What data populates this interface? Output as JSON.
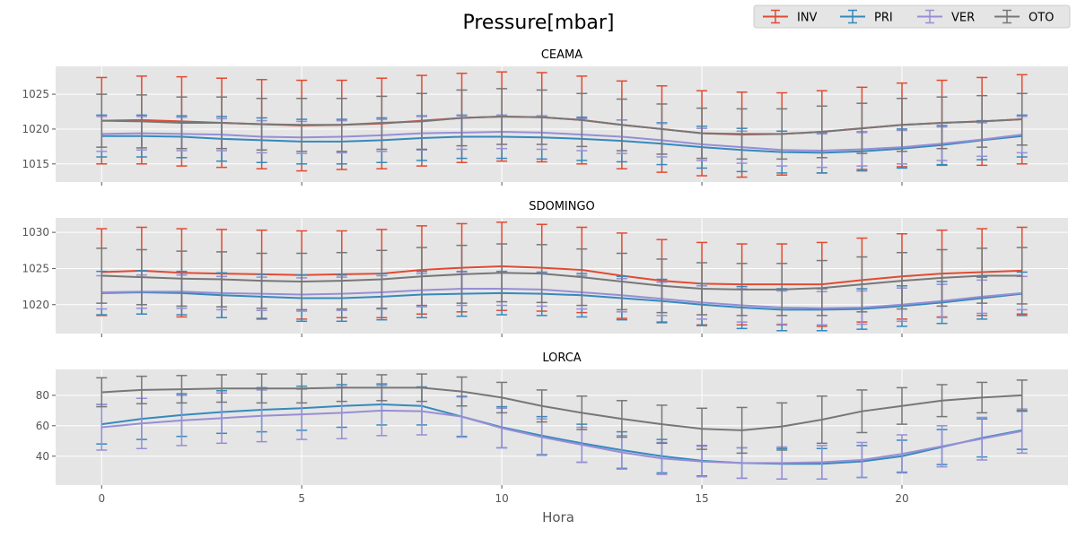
{
  "chart_data": {
    "type": "line",
    "title": "Pressure[mbar]",
    "xlabel": "Hora",
    "x": [
      0,
      1,
      2,
      3,
      4,
      5,
      6,
      7,
      8,
      9,
      10,
      11,
      12,
      13,
      14,
      15,
      16,
      17,
      18,
      19,
      20,
      21,
      22,
      23
    ],
    "xticks": [
      0,
      5,
      10,
      15,
      20
    ],
    "xlim": [
      -1.15,
      24.15
    ],
    "legend": {
      "position": "top-right",
      "entries": [
        "INV",
        "PRI",
        "VER",
        "OTO"
      ]
    },
    "colors": {
      "INV": "#E24A33",
      "PRI": "#348ABD",
      "VER": "#988ED5",
      "OTO": "#777777"
    },
    "background": "#E5E5E5",
    "grid": true,
    "panels": [
      {
        "title": "CEAMA",
        "ylim": [
          1012.4,
          1029.0
        ],
        "yticks": [
          1015,
          1020,
          1025
        ],
        "series": [
          {
            "name": "INV",
            "values": [
              1021.2,
              1021.3,
              1021.1,
              1020.9,
              1020.7,
              1020.5,
              1020.6,
              1020.8,
              1021.2,
              1021.6,
              1021.8,
              1021.7,
              1021.3,
              1020.6,
              1020.0,
              1019.4,
              1019.2,
              1019.3,
              1019.6,
              1020.1,
              1020.6,
              1020.9,
              1021.1,
              1021.4
            ],
            "err": [
              6.2,
              6.3,
              6.4,
              6.4,
              6.4,
              6.5,
              6.4,
              6.5,
              6.5,
              6.4,
              6.4,
              6.4,
              6.3,
              6.3,
              6.2,
              6.1,
              6.1,
              5.9,
              5.9,
              5.9,
              6.0,
              6.1,
              6.3,
              6.4
            ]
          },
          {
            "name": "PRI",
            "values": [
              1019.0,
              1019.0,
              1018.9,
              1018.6,
              1018.4,
              1018.2,
              1018.2,
              1018.4,
              1018.7,
              1018.9,
              1018.9,
              1018.8,
              1018.6,
              1018.3,
              1017.9,
              1017.4,
              1017.0,
              1016.7,
              1016.6,
              1016.8,
              1017.2,
              1017.7,
              1018.4,
              1019.0
            ],
            "err": [
              3.0,
              3.0,
              3.0,
              3.2,
              3.2,
              3.2,
              3.2,
              3.2,
              3.2,
              3.1,
              3.1,
              3.1,
              3.1,
              3.0,
              3.0,
              3.0,
              3.1,
              3.0,
              2.9,
              2.8,
              2.8,
              2.8,
              2.8,
              3.0
            ]
          },
          {
            "name": "VER",
            "values": [
              1019.3,
              1019.4,
              1019.3,
              1019.2,
              1018.9,
              1018.8,
              1018.9,
              1019.1,
              1019.4,
              1019.5,
              1019.6,
              1019.5,
              1019.2,
              1018.9,
              1018.4,
              1017.8,
              1017.4,
              1017.0,
              1016.9,
              1017.1,
              1017.4,
              1017.9,
              1018.5,
              1019.2
            ],
            "err": [
              2.5,
              2.4,
              2.4,
              2.3,
              2.3,
              2.3,
              2.3,
              2.3,
              2.4,
              2.4,
              2.4,
              2.4,
              2.3,
              2.4,
              2.4,
              2.3,
              2.3,
              2.3,
              2.4,
              2.4,
              2.4,
              2.4,
              2.4,
              2.6
            ]
          },
          {
            "name": "OTO",
            "values": [
              1021.2,
              1021.1,
              1020.9,
              1020.9,
              1020.7,
              1020.6,
              1020.6,
              1020.9,
              1021.1,
              1021.6,
              1021.8,
              1021.7,
              1021.3,
              1020.6,
              1020.0,
              1019.4,
              1019.3,
              1019.3,
              1019.6,
              1020.1,
              1020.6,
              1020.9,
              1021.1,
              1021.4
            ],
            "err": [
              3.8,
              3.8,
              3.7,
              3.7,
              3.7,
              3.8,
              3.8,
              3.8,
              4.0,
              4.0,
              4.0,
              3.9,
              3.8,
              3.7,
              3.6,
              3.6,
              3.6,
              3.6,
              3.7,
              3.6,
              3.8,
              3.7,
              3.7,
              3.7
            ]
          }
        ]
      },
      {
        "title": "SDOMINGO",
        "ylim": [
          1016.0,
          1032.0
        ],
        "yticks": [
          1020,
          1025,
          1030
        ],
        "series": [
          {
            "name": "INV",
            "values": [
              1024.5,
              1024.7,
              1024.4,
              1024.3,
              1024.2,
              1024.1,
              1024.2,
              1024.3,
              1024.8,
              1025.1,
              1025.3,
              1025.1,
              1024.8,
              1024.0,
              1023.3,
              1022.9,
              1022.8,
              1022.8,
              1022.8,
              1023.4,
              1023.9,
              1024.3,
              1024.5,
              1024.7
            ],
            "err": [
              6.0,
              6.0,
              6.1,
              6.1,
              6.1,
              6.1,
              6.0,
              6.1,
              6.1,
              6.1,
              6.1,
              6.0,
              5.9,
              5.9,
              5.7,
              5.7,
              5.6,
              5.6,
              5.8,
              5.8,
              5.9,
              6.0,
              6.0,
              6.0
            ]
          },
          {
            "name": "PRI",
            "values": [
              1021.6,
              1021.7,
              1021.6,
              1021.3,
              1021.1,
              1020.9,
              1020.9,
              1021.1,
              1021.4,
              1021.5,
              1021.6,
              1021.5,
              1021.3,
              1020.9,
              1020.5,
              1020.0,
              1019.6,
              1019.3,
              1019.3,
              1019.4,
              1019.8,
              1020.3,
              1020.9,
              1021.5
            ],
            "err": [
              3.0,
              3.0,
              3.0,
              3.1,
              3.1,
              3.2,
              3.2,
              3.2,
              3.2,
              3.1,
              3.0,
              3.0,
              3.0,
              3.0,
              3.0,
              2.9,
              2.9,
              2.9,
              2.9,
              2.8,
              2.8,
              2.9,
              2.9,
              3.0
            ]
          },
          {
            "name": "VER",
            "values": [
              1021.7,
              1021.8,
              1021.8,
              1021.6,
              1021.5,
              1021.4,
              1021.5,
              1021.7,
              1022.0,
              1022.2,
              1022.2,
              1022.1,
              1021.7,
              1021.3,
              1020.8,
              1020.3,
              1019.9,
              1019.6,
              1019.5,
              1019.6,
              1020.0,
              1020.5,
              1021.1,
              1021.6
            ],
            "err": [
              2.3,
              2.3,
              2.3,
              2.3,
              2.3,
              2.3,
              2.3,
              2.3,
              2.3,
              2.3,
              2.3,
              2.3,
              2.3,
              2.3,
              2.3,
              2.3,
              2.3,
              2.3,
              2.3,
              2.3,
              2.3,
              2.3,
              2.3,
              2.3
            ]
          },
          {
            "name": "OTO",
            "values": [
              1024.0,
              1023.8,
              1023.6,
              1023.5,
              1023.3,
              1023.2,
              1023.3,
              1023.5,
              1023.9,
              1024.2,
              1024.4,
              1024.3,
              1023.8,
              1023.2,
              1022.6,
              1022.2,
              1022.1,
              1022.1,
              1022.3,
              1022.8,
              1023.3,
              1023.7,
              1024.0,
              1024.0
            ],
            "err": [
              3.8,
              3.8,
              3.8,
              3.8,
              3.8,
              3.9,
              3.9,
              4.0,
              4.0,
              4.0,
              4.0,
              4.0,
              3.9,
              3.9,
              3.7,
              3.6,
              3.6,
              3.6,
              3.8,
              3.8,
              3.9,
              3.9,
              3.8,
              3.9
            ]
          }
        ]
      },
      {
        "title": "LORCA",
        "ylim": [
          21.0,
          97.0
        ],
        "yticks": [
          40,
          60,
          80
        ],
        "series": [
          {
            "name": "PRI",
            "values": [
              61.0,
              64.5,
              67.0,
              69.0,
              70.5,
              71.5,
              73.0,
              74.0,
              73.0,
              66.0,
              59.0,
              53.5,
              48.5,
              44.0,
              40.0,
              37.0,
              35.5,
              35.0,
              35.0,
              36.5,
              40.0,
              46.0,
              52.0,
              57.0
            ],
            "err": [
              13.0,
              13.5,
              14.0,
              14.0,
              14.5,
              14.5,
              14.0,
              13.5,
              12.5,
              13.0,
              13.5,
              12.5,
              12.5,
              12.0,
              11.0,
              10.0,
              10.0,
              10.0,
              10.0,
              10.5,
              10.5,
              11.5,
              12.5,
              12.5
            ]
          },
          {
            "name": "VER",
            "values": [
              59.0,
              61.5,
              63.5,
              65.0,
              66.5,
              67.5,
              68.5,
              70.0,
              69.5,
              66.0,
              58.5,
              52.5,
              47.5,
              42.5,
              38.5,
              36.5,
              35.5,
              35.5,
              36.0,
              37.5,
              41.5,
              46.5,
              51.5,
              56.5
            ],
            "err": [
              15.0,
              16.5,
              16.5,
              16.5,
              17.0,
              16.5,
              17.0,
              16.5,
              15.5,
              13.5,
              13.0,
              12.0,
              11.5,
              11.0,
              10.5,
              10.0,
              10.0,
              10.5,
              11.0,
              11.5,
              12.5,
              13.5,
              14.0,
              14.5
            ]
          },
          {
            "name": "OTO",
            "values": [
              82.0,
              83.5,
              84.0,
              84.5,
              84.5,
              84.5,
              85.0,
              85.0,
              85.0,
              82.5,
              78.5,
              73.0,
              68.5,
              64.5,
              61.0,
              58.0,
              57.0,
              59.5,
              64.0,
              69.5,
              73.0,
              76.5,
              78.5,
              80.0
            ],
            "err": [
              9.5,
              9.0,
              9.0,
              9.0,
              9.5,
              9.5,
              9.0,
              8.5,
              9.0,
              9.5,
              10.0,
              10.5,
              11.0,
              12.0,
              12.5,
              13.5,
              15.0,
              15.5,
              15.5,
              14.0,
              12.0,
              10.5,
              10.0,
              10.0
            ]
          }
        ]
      }
    ]
  }
}
